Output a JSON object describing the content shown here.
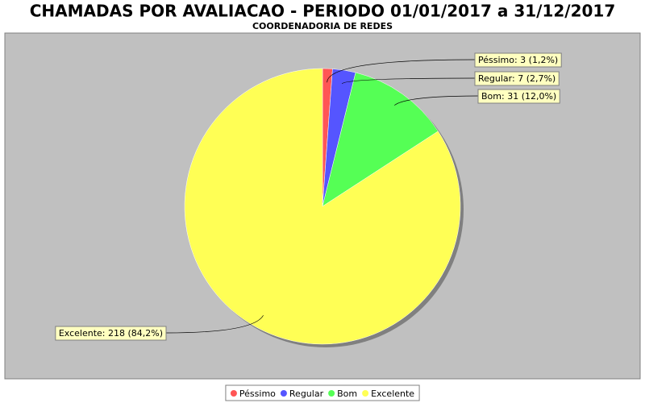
{
  "chart_data": {
    "type": "pie",
    "title": "CHAMADAS POR AVALIACAO - PERIODO 01/01/2017 a 31/12/2017",
    "subtitle": "COORDENADORIA DE REDES",
    "categories": [
      "Péssimo",
      "Regular",
      "Bom",
      "Excelente"
    ],
    "values": [
      3,
      7,
      31,
      218
    ],
    "value_labels": [
      "Péssimo: 3 (1,2%)",
      "Regular: 7 (2,7%)",
      "Bom: 31 (12,0%)",
      "Excelente: 218 (84,2%)"
    ],
    "colors": [
      "#ff5555",
      "#5555ff",
      "#55ff55",
      "#ffff55"
    ],
    "legend": "bottom"
  }
}
